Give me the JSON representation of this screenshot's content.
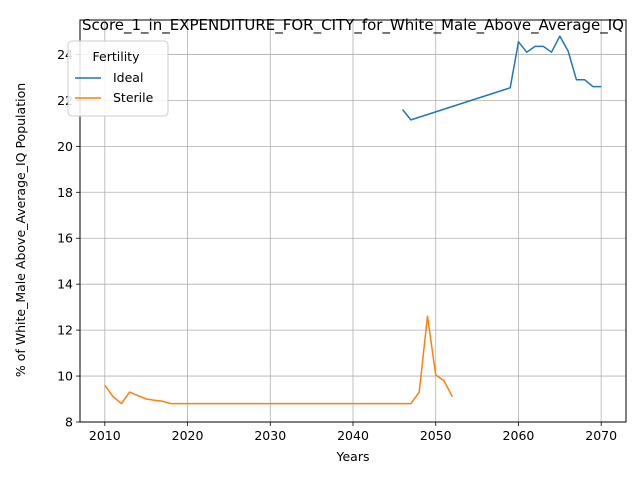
{
  "chart_data": {
    "type": "line",
    "title": "Score_1_in_EXPENDITURE_FOR_CITY_for_White_Male_Above_Average_IQ",
    "xlabel": "Years",
    "ylabel": "% of White_Male Above_Average_IQ Population",
    "xlim": [
      2007,
      2073
    ],
    "ylim": [
      8,
      25.5
    ],
    "xticks": [
      2010,
      2020,
      2030,
      2040,
      2050,
      2060,
      2070
    ],
    "yticks": [
      8,
      10,
      12,
      14,
      16,
      18,
      20,
      22,
      24
    ],
    "grid": true,
    "legend": {
      "title": "Fertility",
      "placement": "top-left"
    },
    "series": [
      {
        "name": "Ideal",
        "color": "#1f77b4",
        "x": [
          2046,
          2047,
          2059,
          2060,
          2061,
          2062,
          2063,
          2064,
          2065,
          2066,
          2067,
          2068,
          2069,
          2070
        ],
        "y": [
          21.6,
          21.15,
          22.55,
          24.55,
          24.1,
          24.35,
          24.35,
          24.1,
          24.8,
          24.15,
          22.9,
          22.9,
          22.6,
          22.6
        ]
      },
      {
        "name": "Sterile",
        "color": "#ff7f0e",
        "x": [
          2010,
          2011,
          2012,
          2013,
          2014,
          2015,
          2016,
          2017,
          2018,
          2047,
          2048,
          2049,
          2050,
          2051,
          2052
        ],
        "y": [
          9.6,
          9.1,
          8.8,
          9.3,
          9.15,
          9.0,
          8.95,
          8.9,
          8.8,
          8.8,
          9.3,
          12.6,
          10.05,
          9.8,
          9.1
        ]
      }
    ]
  }
}
